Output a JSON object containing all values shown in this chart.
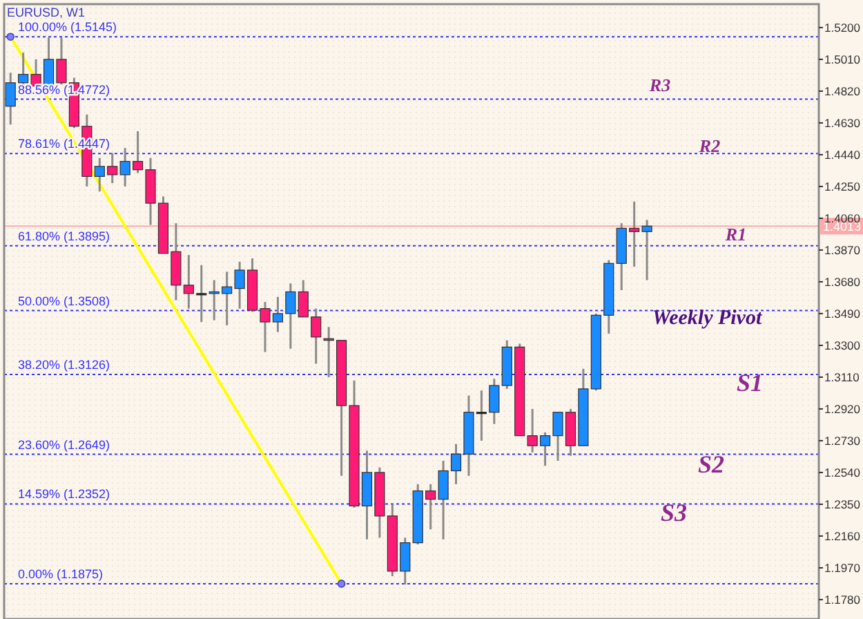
{
  "chart_data": {
    "type": "candlestick",
    "title": "EURUSD, W1",
    "categories": [
      null,
      null,
      null,
      null,
      null,
      null,
      null,
      null,
      null,
      null,
      null,
      null,
      null,
      null,
      null,
      null,
      null,
      null,
      null,
      null,
      null,
      null,
      null,
      null,
      null,
      null,
      null,
      null,
      null,
      null,
      null,
      null,
      null,
      null,
      null,
      null,
      null,
      null,
      null,
      null,
      null,
      null,
      null,
      null,
      null,
      null,
      null,
      null,
      null,
      null,
      null,
      null,
      null,
      null,
      null,
      null,
      null,
      null,
      null,
      null,
      null,
      null,
      null,
      null
    ],
    "ohlc": [
      [
        1.473,
        1.493,
        1.462,
        1.487
      ],
      [
        1.487,
        1.505,
        1.484,
        1.492
      ],
      [
        1.492,
        1.501,
        1.484,
        1.485
      ],
      [
        1.485,
        1.514,
        1.484,
        1.501
      ],
      [
        1.501,
        1.514,
        1.486,
        1.487
      ],
      [
        1.487,
        1.49,
        1.46,
        1.461
      ],
      [
        1.461,
        1.468,
        1.425,
        1.431
      ],
      [
        1.431,
        1.442,
        1.422,
        1.437
      ],
      [
        1.437,
        1.445,
        1.427,
        1.432
      ],
      [
        1.432,
        1.448,
        1.425,
        1.44
      ],
      [
        1.44,
        1.458,
        1.433,
        1.435
      ],
      [
        1.435,
        1.442,
        1.402,
        1.415
      ],
      [
        1.415,
        1.419,
        1.385,
        1.385
      ],
      [
        1.386,
        1.403,
        1.357,
        1.366
      ],
      [
        1.366,
        1.384,
        1.352,
        1.361
      ],
      [
        1.361,
        1.378,
        1.344,
        1.361
      ],
      [
        1.361,
        1.369,
        1.345,
        1.362
      ],
      [
        1.361,
        1.374,
        1.342,
        1.365
      ],
      [
        1.364,
        1.38,
        1.352,
        1.375
      ],
      [
        1.375,
        1.382,
        1.35,
        1.351
      ],
      [
        1.352,
        1.356,
        1.326,
        1.344
      ],
      [
        1.344,
        1.359,
        1.338,
        1.349
      ],
      [
        1.349,
        1.367,
        1.328,
        1.362
      ],
      [
        1.362,
        1.369,
        1.347,
        1.347
      ],
      [
        1.347,
        1.352,
        1.319,
        1.335
      ],
      [
        1.334,
        1.341,
        1.311,
        1.333
      ],
      [
        1.333,
        1.333,
        1.252,
        1.294
      ],
      [
        1.294,
        1.309,
        1.233,
        1.234
      ],
      [
        1.234,
        1.267,
        1.214,
        1.254
      ],
      [
        1.254,
        1.257,
        1.215,
        1.228
      ],
      [
        1.228,
        1.235,
        1.192,
        1.195
      ],
      [
        1.195,
        1.215,
        1.187,
        1.212
      ],
      [
        1.212,
        1.247,
        1.211,
        1.243
      ],
      [
        1.243,
        1.247,
        1.22,
        1.238
      ],
      [
        1.238,
        1.261,
        1.214,
        1.255
      ],
      [
        1.255,
        1.271,
        1.247,
        1.265
      ],
      [
        1.265,
        1.3,
        1.252,
        1.29
      ],
      [
        1.29,
        1.303,
        1.273,
        1.29
      ],
      [
        1.29,
        1.31,
        1.283,
        1.306
      ],
      [
        1.306,
        1.333,
        1.304,
        1.329
      ],
      [
        1.329,
        1.331,
        1.276,
        1.276
      ],
      [
        1.276,
        1.292,
        1.266,
        1.27
      ],
      [
        1.27,
        1.278,
        1.258,
        1.276
      ],
      [
        1.276,
        1.29,
        1.261,
        1.29
      ],
      [
        1.29,
        1.292,
        1.264,
        1.27
      ],
      [
        1.27,
        1.316,
        1.27,
        1.304
      ],
      [
        1.304,
        1.349,
        1.303,
        1.348
      ],
      [
        1.348,
        1.381,
        1.337,
        1.379
      ],
      [
        1.379,
        1.403,
        1.363,
        1.4
      ],
      [
        1.4,
        1.416,
        1.377,
        1.398
      ],
      [
        1.398,
        1.405,
        1.369,
        1.4013
      ],
      null,
      null,
      null,
      null,
      null,
      null,
      null,
      null,
      null,
      null,
      null,
      null,
      null
    ],
    "colors": [
      "#1a8cff",
      "#1a8cff",
      "#ff1a75",
      "#1a8cff",
      "#ff1a75",
      "#ff1a75",
      "#ff1a75",
      "#1a8cff",
      "#ff1a75",
      "#1a8cff",
      "#ff1a75",
      "#ff1a75",
      "#ff1a75",
      "#ff1a75",
      "#ff1a75",
      "#000000",
      "#1a8cff",
      "#1a8cff",
      "#1a8cff",
      "#ff1a75",
      "#ff1a75",
      "#1a8cff",
      "#1a8cff",
      "#ff1a75",
      "#ff1a75",
      "#ff1a75",
      "#ff1a75",
      "#ff1a75",
      "#1a8cff",
      "#ff1a75",
      "#ff1a75",
      "#1a8cff",
      "#1a8cff",
      "#ff1a75",
      "#1a8cff",
      "#1a8cff",
      "#1a8cff",
      "#000000",
      "#1a8cff",
      "#1a8cff",
      "#ff1a75",
      "#ff1a75",
      "#1a8cff",
      "#1a8cff",
      "#ff1a75",
      "#1a8cff",
      "#1a8cff",
      "#1a8cff",
      "#1a8cff",
      "#ff1a75",
      "#1a8cff",
      null,
      null,
      null,
      null,
      null,
      null,
      null,
      null,
      null,
      null,
      null,
      null,
      null
    ],
    "series": [
      {
        "type": "line",
        "color": "#ffff00",
        "marker": "circle",
        "values": [
          1.5145,
          null,
          null,
          null,
          null,
          null,
          null,
          null,
          null,
          null,
          null,
          null,
          null,
          null,
          null,
          null,
          null,
          null,
          null,
          null,
          null,
          null,
          null,
          null,
          null,
          null,
          1.1875,
          null,
          null,
          null,
          null,
          null,
          null,
          null,
          null,
          null,
          null,
          null,
          null,
          null,
          null,
          null,
          null,
          null,
          null,
          null,
          null,
          null,
          null,
          null,
          null,
          null,
          null,
          null,
          null,
          null,
          null,
          null,
          null,
          null,
          null,
          null,
          null,
          null
        ]
      }
    ],
    "ylim": [
      1.1664,
      1.534
    ],
    "yticks": [
      {
        "value": 1.52,
        "label": "1.5200"
      },
      {
        "value": 1.501,
        "label": "1.5010"
      },
      {
        "value": 1.482,
        "label": "1.4820"
      },
      {
        "value": 1.463,
        "label": "1.4630"
      },
      {
        "value": 1.444,
        "label": "1.4440"
      },
      {
        "value": 1.425,
        "label": "1.4250"
      },
      {
        "value": 1.406,
        "label": "1.4060"
      },
      {
        "value": 1.387,
        "label": "1.3870"
      },
      {
        "value": 1.368,
        "label": "1.3680"
      },
      {
        "value": 1.349,
        "label": "1.3490"
      },
      {
        "value": 1.33,
        "label": "1.3300"
      },
      {
        "value": 1.311,
        "label": "1.3110"
      },
      {
        "value": 1.292,
        "label": "1.2920"
      },
      {
        "value": 1.273,
        "label": "1.2730"
      },
      {
        "value": 1.254,
        "label": "1.2540"
      },
      {
        "value": 1.235,
        "label": "1.2350"
      },
      {
        "value": 1.216,
        "label": "1.2160"
      },
      {
        "value": 1.197,
        "label": "1.1970"
      },
      {
        "value": 1.178,
        "label": "1.1780"
      }
    ],
    "ref_lines": [
      {
        "axis": "y",
        "value": 1.5145,
        "label": "100.00% (1.5145)",
        "color": "#3333ff",
        "line_style": "dotted"
      },
      {
        "axis": "y",
        "value": 1.4772,
        "label": "88.56% (1.4772)",
        "color": "#3333ff",
        "line_style": "dotted"
      },
      {
        "axis": "y",
        "value": 1.4447,
        "label": "78.61% (1.4447)",
        "color": "#3333ff",
        "line_style": "dotted"
      },
      {
        "axis": "y",
        "value": 1.3895,
        "label": "61.80% (1.3895)",
        "color": "#3333ff",
        "line_style": "dotted"
      },
      {
        "axis": "y",
        "value": 1.3508,
        "label": "50.00% (1.3508)",
        "color": "#3333ff",
        "line_style": "dotted"
      },
      {
        "axis": "y",
        "value": 1.3126,
        "label": "38.20% (1.3126)",
        "color": "#3333ff",
        "line_style": "dotted"
      },
      {
        "axis": "y",
        "value": 1.2649,
        "label": "23.60% (1.2649)",
        "color": "#3333ff",
        "line_style": "dotted"
      },
      {
        "axis": "y",
        "value": 1.2352,
        "label": "14.59% (1.2352)",
        "color": "#3333ff",
        "line_style": "dotted"
      },
      {
        "axis": "y",
        "value": 1.1875,
        "label": "0.00% (1.1875)",
        "color": "#3333ff",
        "line_style": "dotted"
      },
      {
        "axis": "y",
        "value": 1.4013,
        "label": "1.4013",
        "color": "#ffaaaa",
        "line_style": "solid"
      }
    ],
    "annotations": [
      "R3",
      "R2",
      "R1",
      "Weekly Pivot",
      "S1",
      "S2",
      "S3"
    ]
  }
}
